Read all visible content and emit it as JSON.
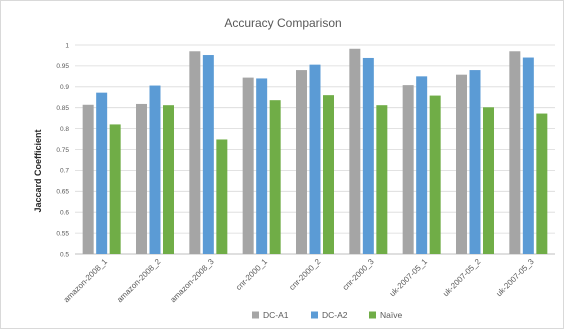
{
  "chart_data": {
    "type": "bar",
    "title": "Accuracy Comparison",
    "xlabel": "",
    "ylabel": "Jaccard Coefficient",
    "ylim": [
      0.5,
      1
    ],
    "yticks": [
      "0.5",
      "0.55",
      "0.6",
      "0.65",
      "0.7",
      "0.75",
      "0.8",
      "0.85",
      "0.9",
      "0.95",
      "1"
    ],
    "grid": true,
    "legend_position": "bottom",
    "categories": [
      "amazon-2008_1",
      "amazon-2008_2",
      "amazon-2008_3",
      "cnr-2000_1",
      "cnr-2000_2",
      "cnr-2000_3",
      "uk-2007-05_1",
      "uk-2007-05_2",
      "uk-2007-05_3"
    ],
    "series": [
      {
        "name": "DC-A1",
        "color": "#a5a5a5",
        "values": [
          0.857,
          0.859,
          0.985,
          0.922,
          0.94,
          0.991,
          0.904,
          0.929,
          0.985
        ]
      },
      {
        "name": "DC-A2",
        "color": "#5b9bd5",
        "values": [
          0.886,
          0.903,
          0.976,
          0.92,
          0.953,
          0.969,
          0.925,
          0.94,
          0.97
        ]
      },
      {
        "name": "Naïve",
        "color": "#70ad47",
        "values": [
          0.81,
          0.856,
          0.774,
          0.868,
          0.88,
          0.856,
          0.879,
          0.851,
          0.836
        ]
      }
    ]
  }
}
